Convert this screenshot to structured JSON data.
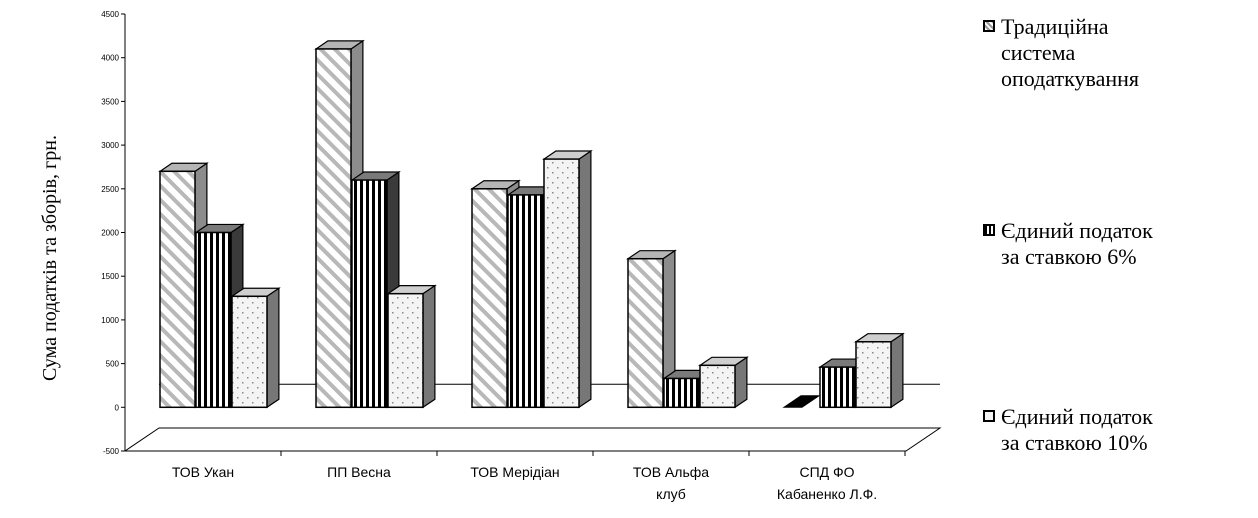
{
  "chart_data": {
    "type": "bar",
    "ylabel": "Сума податків та зборів, грн.",
    "xlabel": "",
    "ylim": [
      -500,
      4500
    ],
    "yticks": [
      -500,
      0,
      500,
      1000,
      1500,
      2000,
      2500,
      3000,
      3500,
      4000,
      4500
    ],
    "categories": [
      "ТОВ Укан",
      "ПП Весна",
      "ТОВ Мерідіан",
      "ТОВ Альфа\nклуб",
      "СПД ФО\nКабаненко Л.Ф."
    ],
    "series": [
      {
        "name": "Традиційна система оподаткування",
        "values": [
          2700,
          4100,
          2500,
          1700,
          0
        ]
      },
      {
        "name": "Єдиний податок за ставкою 6%",
        "values": [
          2000,
          2600,
          2430,
          330,
          460
        ]
      },
      {
        "name": "Єдиний податок за ставкою 10%",
        "values": [
          1270,
          1300,
          2840,
          480,
          750
        ]
      }
    ],
    "legend_position": "right",
    "grid": false
  },
  "legend": [
    {
      "label": "Традиційна\nсистема\nоподаткування",
      "icon": "diagonal-hatch"
    },
    {
      "label": "Єдиний податок\nза ставкою 6%",
      "icon": "vertical-stripes"
    },
    {
      "label": "Єдиний податок\nза ставкою 10%",
      "icon": "dotted"
    }
  ]
}
